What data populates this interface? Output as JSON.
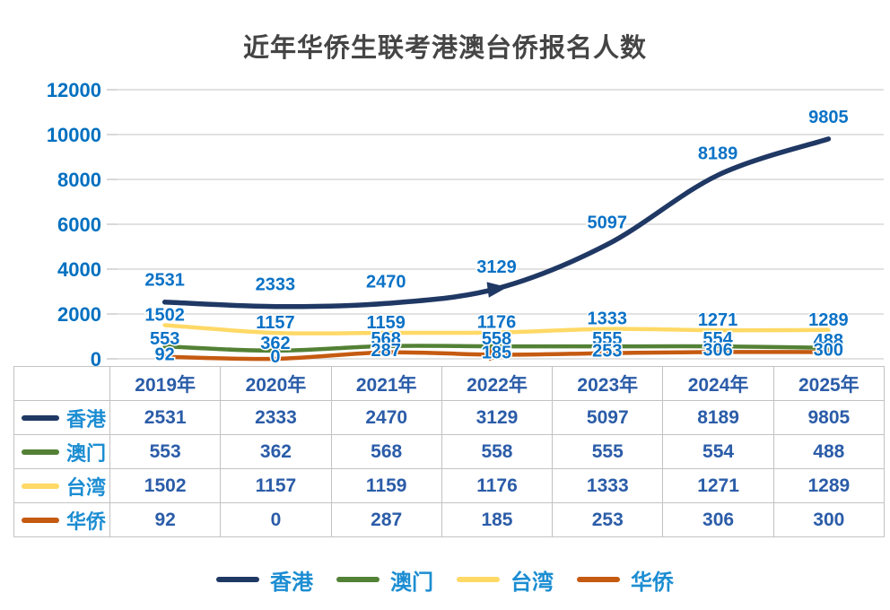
{
  "chart_data": {
    "type": "line",
    "title": "近年华侨生联考港澳台侨报名人数",
    "categories": [
      "2019年",
      "2020年",
      "2021年",
      "2022年",
      "2023年",
      "2024年",
      "2025年"
    ],
    "series": [
      {
        "key": "hongkong",
        "name": "香港",
        "color": "#1F3864",
        "values": [
          2531,
          2333,
          2470,
          3129,
          5097,
          8189,
          9805
        ]
      },
      {
        "key": "macau",
        "name": "澳门",
        "color": "#538135",
        "values": [
          553,
          362,
          568,
          558,
          555,
          554,
          488
        ]
      },
      {
        "key": "taiwan",
        "name": "台湾",
        "color": "#FFD966",
        "values": [
          1502,
          1157,
          1159,
          1176,
          1333,
          1271,
          1289
        ]
      },
      {
        "key": "huaqiao",
        "name": "华侨",
        "color": "#C55A11",
        "values": [
          92,
          0,
          287,
          185,
          253,
          306,
          300
        ]
      }
    ],
    "ylim": [
      0,
      12000
    ],
    "ytick_step": 2000,
    "ytick_labels": [
      "0",
      "2000",
      "4000",
      "6000",
      "8000",
      "10000",
      "12000"
    ],
    "xlabel": "",
    "ylabel": "",
    "grid": true,
    "legend_position": "bottom",
    "data_table_attached": true,
    "colors": {
      "axis_label": "#0070C0",
      "data_label": "#0B72C6",
      "table_text": "#2B5CA8",
      "series_name_text": "#1C8DD2",
      "title_text": "#454545",
      "gridline": "#D9D9D9",
      "table_border": "#C3C3C3"
    }
  }
}
